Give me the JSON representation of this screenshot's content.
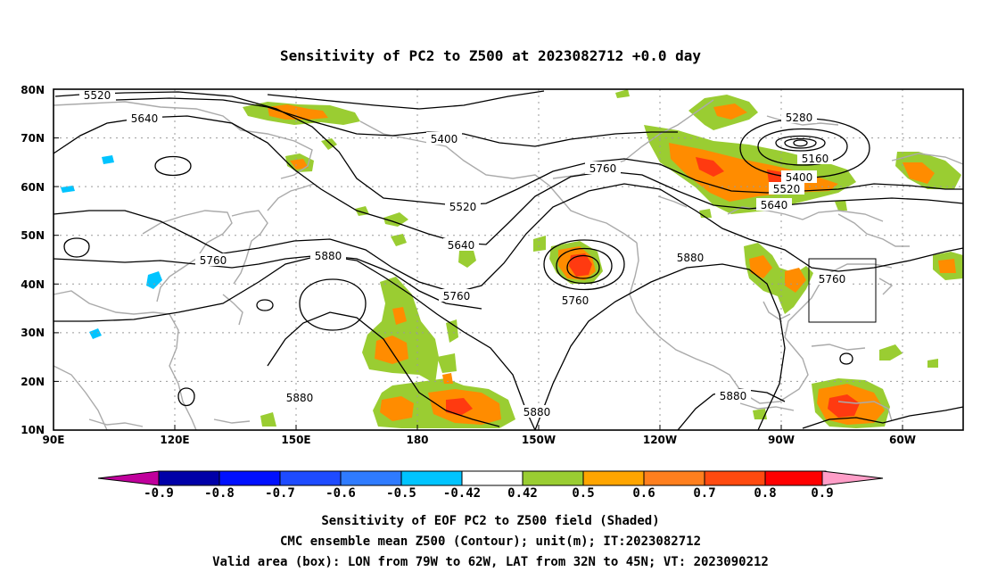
{
  "title": "Sensitivity of PC2 to Z500 at 2023082712 +0.0 day",
  "map": {
    "lat_labels": [
      "80N",
      "70N",
      "60N",
      "50N",
      "40N",
      "30N",
      "20N",
      "10N"
    ],
    "lon_labels": [
      "90E",
      "120E",
      "150E",
      "180",
      "150W",
      "120W",
      "90W",
      "60W"
    ],
    "grid": true
  },
  "contour_labels": [
    {
      "text": "5520"
    },
    {
      "text": "5640"
    },
    {
      "text": "5400"
    },
    {
      "text": "5760"
    },
    {
      "text": "5520"
    },
    {
      "text": "5640"
    },
    {
      "text": "5760"
    },
    {
      "text": "5880"
    },
    {
      "text": "5760"
    },
    {
      "text": "5760"
    },
    {
      "text": "5880"
    },
    {
      "text": "5280"
    },
    {
      "text": "5160"
    },
    {
      "text": "5400"
    },
    {
      "text": "5520"
    },
    {
      "text": "5640"
    },
    {
      "text": "5760"
    },
    {
      "text": "5880"
    },
    {
      "text": "5880"
    },
    {
      "text": "5880"
    }
  ],
  "colorbar": {
    "labels": [
      "-0.9",
      "-0.8",
      "-0.7",
      "-0.6",
      "-0.5",
      "-0.42",
      "0.42",
      "0.5",
      "0.6",
      "0.7",
      "0.8",
      "0.9"
    ],
    "colors": [
      "#0000a8",
      "#0010ff",
      "#1e4bff",
      "#2f7bff",
      "#00c4ff",
      "#ffffff",
      "#9acd32",
      "#ffa500",
      "#ff7f1e",
      "#ff4a10",
      "#ff0000"
    ],
    "low_color": "#c0009c",
    "high_color": "#ff9ec8"
  },
  "captions": [
    "Sensitivity of EOF PC2 to Z500 field (Shaded)",
    "CMC ensemble mean Z500 (Contour); unit(m); IT:2023082712",
    "Valid area (box): LON from 79W to 62W, LAT from 32N to 45N; VT: 2023090212"
  ]
}
